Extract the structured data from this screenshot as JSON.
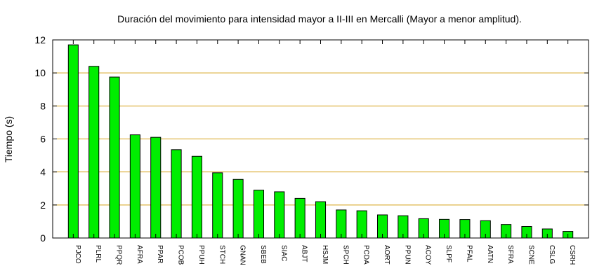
{
  "chart_data": {
    "type": "bar",
    "title": "Duración del movimiento para intensidad mayor a II-III en Mercalli (Mayor a menor amplitud).",
    "xlabel": "",
    "ylabel": "Tiempo (s)",
    "ylim": [
      0,
      12
    ],
    "yticks": [
      0,
      2,
      4,
      6,
      8,
      10,
      12
    ],
    "grid": "horizontal",
    "colors": {
      "bar_fill": "#00ee00",
      "bar_stroke": "#000000",
      "grid": "#d4a017"
    },
    "categories": [
      "PJCO",
      "PLRL",
      "PPQR",
      "AFRA",
      "PPAR",
      "PCOB",
      "PPUH",
      "STCH",
      "GNAN",
      "SBEB",
      "SIAC",
      "ABJT",
      "HSJM",
      "SPCH",
      "PCDA",
      "AORT",
      "PPUN",
      "ACOY",
      "SLPF",
      "PFAL",
      "AATN",
      "SFRA",
      "SCNE",
      "CSLG",
      "CSRH"
    ],
    "values": [
      11.7,
      10.4,
      9.75,
      6.25,
      6.1,
      5.35,
      4.95,
      3.95,
      3.55,
      2.9,
      2.8,
      2.4,
      2.2,
      1.7,
      1.65,
      1.4,
      1.35,
      1.17,
      1.13,
      1.12,
      1.05,
      0.82,
      0.7,
      0.55,
      0.4
    ]
  }
}
